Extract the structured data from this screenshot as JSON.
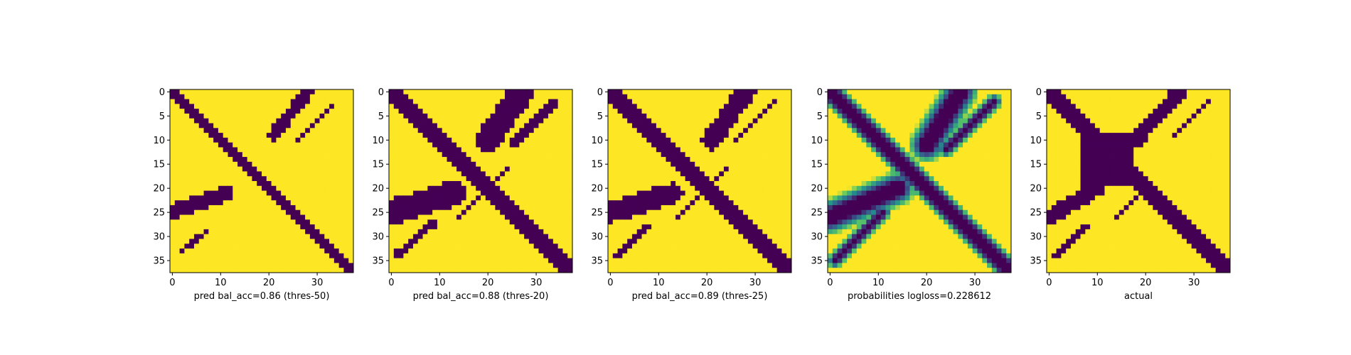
{
  "colors": {
    "low": "#440154",
    "mid1": "#3b528b",
    "mid2": "#21918c",
    "mid3": "#5ec962",
    "high": "#fde725"
  },
  "chart_data": [
    {
      "type": "heatmap",
      "xlabel": "pred bal_acc=0.86 (thres-50)",
      "grid": "38x38 binary mask",
      "xticks": [
        0,
        10,
        20,
        30
      ],
      "yticks": [
        0,
        5,
        10,
        15,
        20,
        25,
        30,
        35
      ],
      "xlim": [
        0,
        37
      ],
      "ylim": [
        37,
        0
      ],
      "low_regions": [
        {
          "kind": "line",
          "from": [
            0,
            0
          ],
          "to": [
            37,
            37
          ],
          "half_width": 1.3
        },
        {
          "kind": "line",
          "from": [
            28,
            0
          ],
          "to": [
            21,
            9
          ],
          "half_width": 1.3
        },
        {
          "kind": "line",
          "from": [
            33,
            3
          ],
          "to": [
            26,
            10
          ],
          "half_width": 0.6
        },
        {
          "kind": "line",
          "from": [
            0,
            25
          ],
          "to": [
            11,
            21
          ],
          "half_width": 1.6
        },
        {
          "kind": "line",
          "from": [
            2,
            33
          ],
          "to": [
            7,
            29
          ],
          "half_width": 0.6
        }
      ]
    },
    {
      "type": "heatmap",
      "xlabel": "pred bal_acc=0.88 (thres-20)",
      "grid": "38x38 binary mask",
      "xticks": [
        0,
        10,
        20,
        30
      ],
      "yticks": [
        0,
        5,
        10,
        15,
        20,
        25,
        30,
        35
      ],
      "xlim": [
        0,
        37
      ],
      "ylim": [
        37,
        0
      ],
      "low_regions": [
        {
          "kind": "line",
          "from": [
            0,
            0
          ],
          "to": [
            37,
            37
          ],
          "half_width": 1.6
        },
        {
          "kind": "line",
          "from": [
            27,
            0
          ],
          "to": [
            20,
            10
          ],
          "half_width": 2.6
        },
        {
          "kind": "line",
          "from": [
            34,
            2
          ],
          "to": [
            25,
            11
          ],
          "half_width": 0.8
        },
        {
          "kind": "line",
          "from": [
            0,
            25
          ],
          "to": [
            13,
            21
          ],
          "half_width": 2.6
        },
        {
          "kind": "line",
          "from": [
            1,
            34
          ],
          "to": [
            9,
            27
          ],
          "half_width": 0.8
        },
        {
          "kind": "line",
          "from": [
            14,
            26
          ],
          "to": [
            24,
            16
          ],
          "half_width": 0.6
        }
      ]
    },
    {
      "type": "heatmap",
      "xlabel": "pred bal_acc=0.89 (thres-25)",
      "grid": "38x38 binary mask",
      "xticks": [
        0,
        10,
        20,
        30
      ],
      "yticks": [
        0,
        5,
        10,
        15,
        20,
        25,
        30,
        35
      ],
      "xlim": [
        0,
        37
      ],
      "ylim": [
        37,
        0
      ],
      "low_regions": [
        {
          "kind": "line",
          "from": [
            0,
            0
          ],
          "to": [
            37,
            37
          ],
          "half_width": 1.5
        },
        {
          "kind": "line",
          "from": [
            28,
            0
          ],
          "to": [
            21,
            10
          ],
          "half_width": 2.0
        },
        {
          "kind": "line",
          "from": [
            34,
            2
          ],
          "to": [
            26,
            10
          ],
          "half_width": 0.7
        },
        {
          "kind": "line",
          "from": [
            0,
            25
          ],
          "to": [
            13,
            21
          ],
          "half_width": 2.2
        },
        {
          "kind": "line",
          "from": [
            1,
            34
          ],
          "to": [
            8,
            28
          ],
          "half_width": 0.7
        },
        {
          "kind": "line",
          "from": [
            14,
            26
          ],
          "to": [
            24,
            16
          ],
          "half_width": 0.5
        }
      ]
    },
    {
      "type": "heatmap",
      "xlabel": "probabilities logloss=0.228612",
      "grid": "38x38 continuous probabilities",
      "xticks": [
        0,
        10,
        20,
        30
      ],
      "yticks": [
        0,
        5,
        10,
        15,
        20,
        25,
        30,
        35
      ],
      "xlim": [
        0,
        37
      ],
      "ylim": [
        37,
        0
      ],
      "low_regions": [
        {
          "kind": "line",
          "from": [
            0,
            0
          ],
          "to": [
            37,
            37
          ],
          "half_width": 1.2,
          "softness": 1.4
        },
        {
          "kind": "line",
          "from": [
            27,
            0
          ],
          "to": [
            20,
            11
          ],
          "half_width": 1.4,
          "softness": 2.6
        },
        {
          "kind": "line",
          "from": [
            34,
            2
          ],
          "to": [
            24,
            12
          ],
          "half_width": 0.5,
          "softness": 1.3
        },
        {
          "kind": "line",
          "from": [
            0,
            26
          ],
          "to": [
            14,
            20
          ],
          "half_width": 1.4,
          "softness": 2.6
        },
        {
          "kind": "line",
          "from": [
            1,
            35
          ],
          "to": [
            11,
            25
          ],
          "half_width": 0.5,
          "softness": 1.3
        }
      ]
    },
    {
      "type": "heatmap",
      "xlabel": "actual",
      "grid": "38x38 binary mask",
      "xticks": [
        0,
        10,
        20,
        30
      ],
      "yticks": [
        0,
        5,
        10,
        15,
        20,
        25,
        30,
        35
      ],
      "xlim": [
        0,
        37
      ],
      "ylim": [
        37,
        0
      ],
      "low_regions": [
        {
          "kind": "line",
          "from": [
            0,
            0
          ],
          "to": [
            37,
            37
          ],
          "half_width": 1.5
        },
        {
          "kind": "line",
          "from": [
            27,
            0
          ],
          "to": [
            18,
            10
          ],
          "half_width": 1.5
        },
        {
          "kind": "line",
          "from": [
            33,
            2
          ],
          "to": [
            26,
            9
          ],
          "half_width": 0.7
        },
        {
          "kind": "line",
          "from": [
            0,
            26
          ],
          "to": [
            10,
            20
          ],
          "half_width": 1.6
        },
        {
          "kind": "line",
          "from": [
            1,
            34
          ],
          "to": [
            8,
            28
          ],
          "half_width": 0.7
        },
        {
          "kind": "line",
          "from": [
            14,
            26
          ],
          "to": [
            19,
            21
          ],
          "half_width": 0.5
        },
        {
          "kind": "block",
          "x": [
            7,
            17
          ],
          "y": [
            9,
            19
          ]
        }
      ]
    }
  ]
}
